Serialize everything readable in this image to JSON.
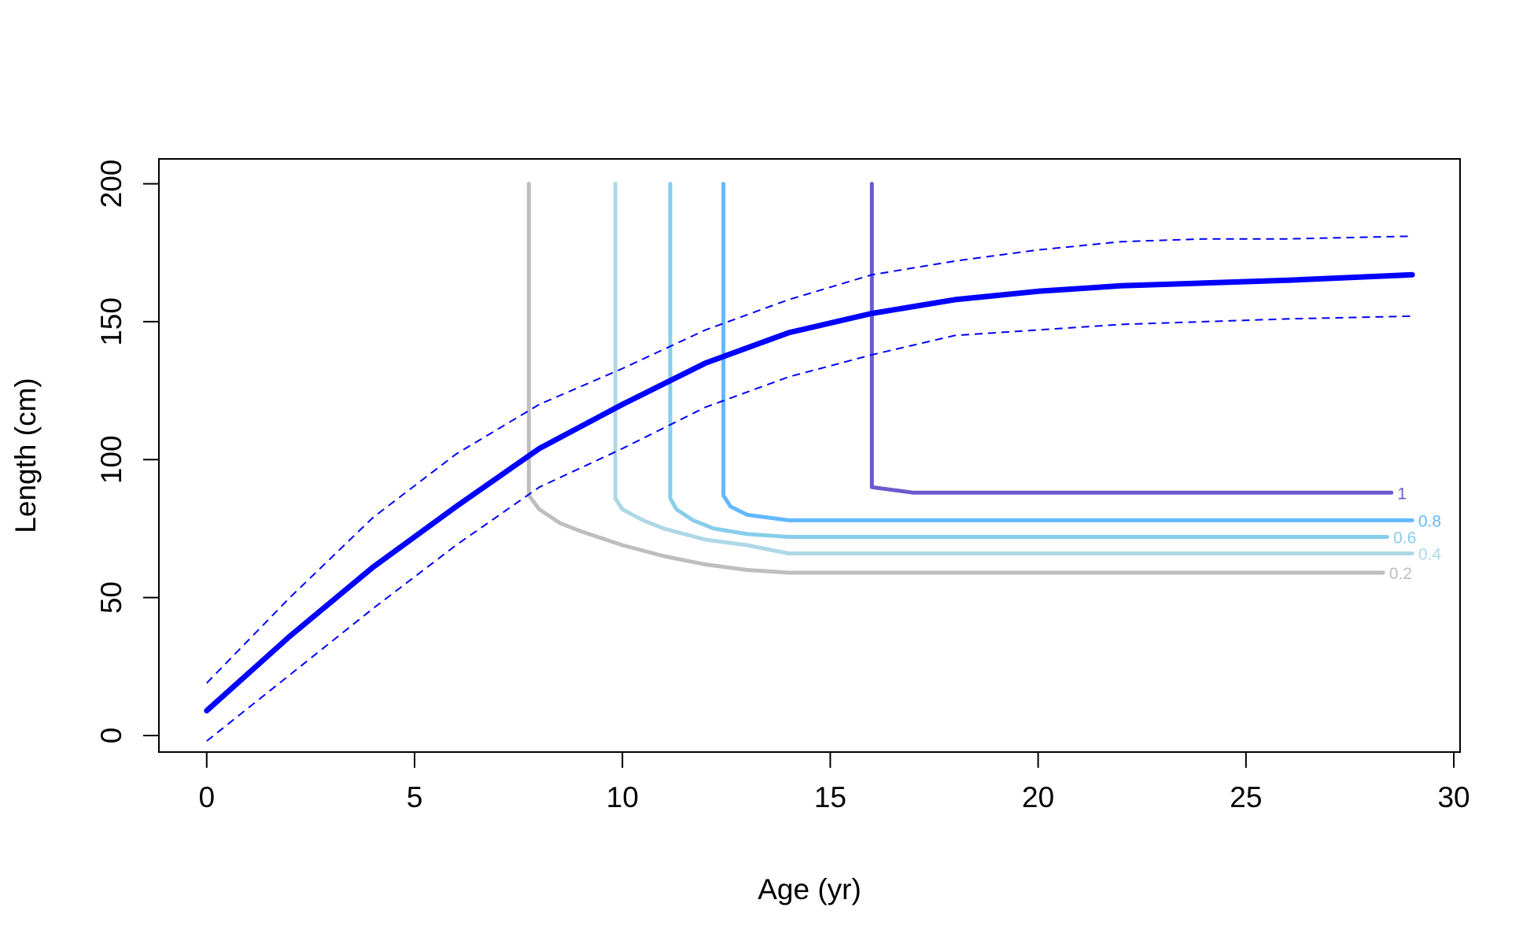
{
  "chart_data": {
    "type": "line",
    "xlabel": "Age (yr)",
    "ylabel": "Length (cm)",
    "xlim": [
      -1.15,
      30.15
    ],
    "ylim": [
      -6,
      209
    ],
    "x_ticks": [
      0,
      5,
      10,
      15,
      20,
      25,
      30
    ],
    "y_ticks": [
      0,
      50,
      100,
      150,
      200
    ],
    "grid": false,
    "legend": "none",
    "growth_curve": {
      "color": "#0000ff",
      "x": [
        0,
        2,
        4,
        6,
        8,
        10,
        12,
        14,
        16,
        18,
        20,
        22,
        24,
        26,
        29
      ],
      "mean": [
        9,
        36,
        61,
        83,
        104,
        120,
        135,
        146,
        153,
        158,
        161,
        163,
        164,
        165,
        167
      ],
      "upper": [
        19,
        50,
        79,
        102,
        120,
        133,
        147,
        158,
        167,
        172,
        176,
        179,
        180,
        180,
        181
      ],
      "lower": [
        -2,
        22,
        46,
        69,
        90,
        104,
        119,
        130,
        138,
        145,
        147,
        149,
        150,
        151,
        152
      ]
    },
    "contours": [
      {
        "level": "0.2",
        "color": "#bebebe",
        "x": [
          7.75,
          7.75,
          7.75,
          8.0,
          8.5,
          9.0,
          10.0,
          11.0,
          12.0,
          13.0,
          14.0,
          28.3
        ],
        "y": [
          200,
          100,
          87,
          82,
          77,
          74,
          69,
          65,
          62,
          60,
          59,
          59
        ]
      },
      {
        "level": "0.4",
        "color": "#add8e6",
        "x": [
          9.83,
          9.83,
          9.83,
          10.0,
          10.5,
          11.0,
          12.0,
          13.0,
          14.0,
          29.0
        ],
        "y": [
          200,
          120,
          86,
          82,
          78,
          75,
          71,
          69,
          66,
          66
        ]
      },
      {
        "level": "0.6",
        "color": "#87ceeb",
        "x": [
          11.15,
          11.15,
          11.15,
          11.3,
          11.7,
          12.2,
          13.0,
          14.0,
          14.5,
          28.4
        ],
        "y": [
          200,
          130,
          86,
          82,
          78,
          75,
          73,
          72,
          72,
          72
        ]
      },
      {
        "level": "0.8",
        "color": "#63b8ff",
        "x": [
          12.43,
          12.43,
          12.43,
          12.6,
          13.0,
          13.5,
          14.0,
          29.0
        ],
        "y": [
          200,
          136,
          87,
          83,
          80,
          79,
          78,
          78
        ]
      },
      {
        "level": "1",
        "color": "#6a5acd",
        "x": [
          16.0,
          16.0,
          16.0,
          17.0,
          28.5
        ],
        "y": [
          200,
          155,
          90,
          88,
          88
        ]
      }
    ]
  }
}
